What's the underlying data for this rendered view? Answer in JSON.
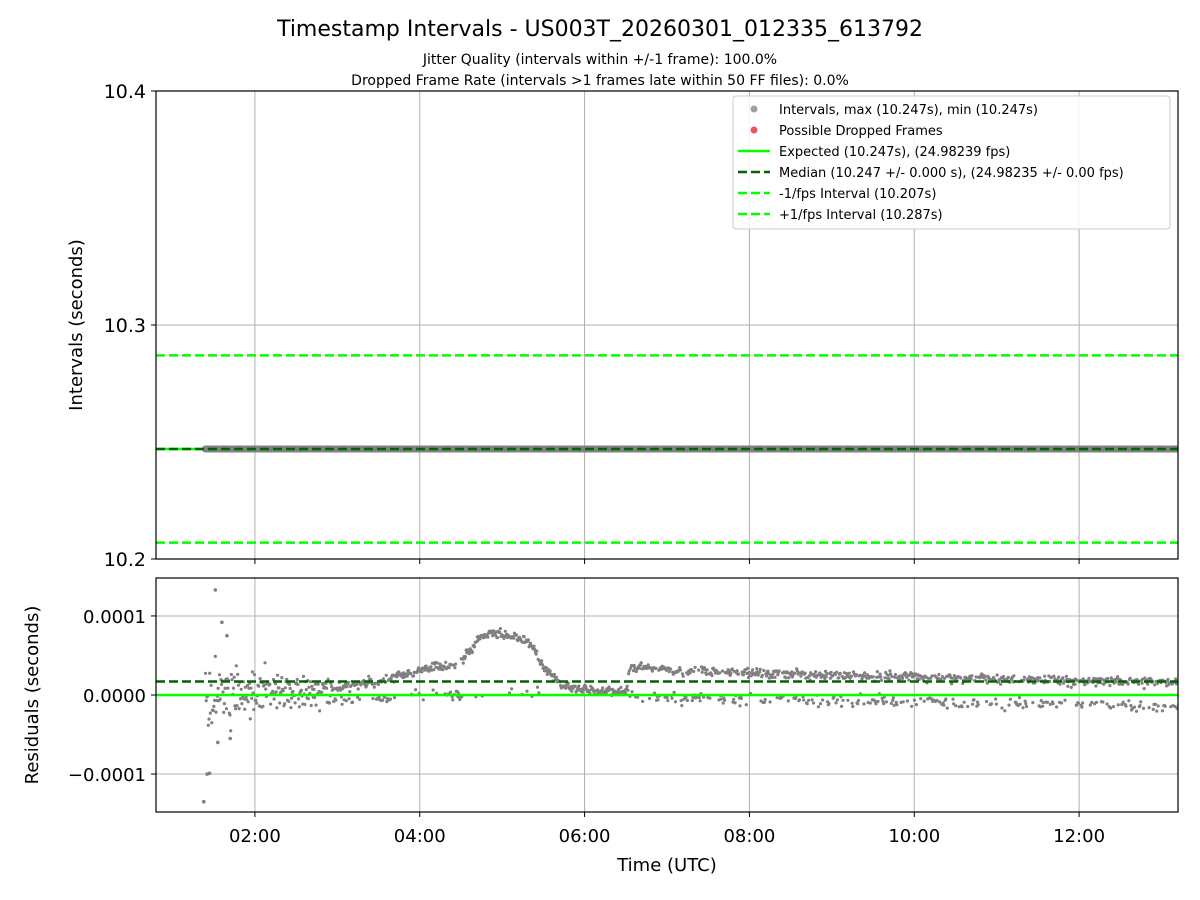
{
  "title": "Timestamp Intervals - US003T_20260301_012335_613792",
  "subtitle_lines": [
    "Jitter Quality (intervals within +/-1 frame): 100.0%",
    "Dropped Frame Rate (intervals >1 frames late within 50 FF files): 0.0%"
  ],
  "colors": {
    "points": "#808080",
    "dropped": "#ff5555",
    "expected": "#00ff00",
    "median": "#006400",
    "bounds": "#00ff00",
    "grid": "#b0b0b0"
  },
  "chart_data": [
    {
      "type": "scatter",
      "panel": "intervals",
      "ylabel": "Intervals (seconds)",
      "ylim": [
        10.2,
        10.4
      ],
      "yticks": [
        "10.2",
        "10.3",
        "10.4"
      ],
      "y_tick_values": [
        10.2,
        10.3,
        10.4
      ],
      "xlim": [
        "00:48",
        "13:12"
      ],
      "xticks": [
        "02:00",
        "04:00",
        "06:00",
        "08:00",
        "10:00",
        "12:00"
      ],
      "grid": true,
      "legend_position": "top-right",
      "legend": [
        {
          "label": "Intervals, max (10.247s), min (10.247s)",
          "kind": "dot",
          "color": "#a0a0a0"
        },
        {
          "label": "Possible Dropped Frames",
          "kind": "dot",
          "color": "#ee5555"
        },
        {
          "label": "Expected (10.247s), (24.98239 fps)",
          "kind": "solid",
          "color": "#00ff00"
        },
        {
          "label": "Median (10.247 +/- 0.000 s), (24.98235 +/- 0.00 fps)",
          "kind": "dashed",
          "color": "#006400"
        },
        {
          "label": "-1/fps Interval (10.207s)",
          "kind": "dashed",
          "color": "#00ff00"
        },
        {
          "label": "+1/fps Interval (10.287s)",
          "kind": "dashed",
          "color": "#00ff00"
        }
      ],
      "series": {
        "intervals": {
          "value": 10.247,
          "x_start": "01:24",
          "x_end": "13:12"
        },
        "expected": 10.247,
        "median": 10.247,
        "minus_fps_interval": 10.207,
        "plus_fps_interval": 10.287
      }
    },
    {
      "type": "scatter",
      "panel": "residuals",
      "xlabel": "Time (UTC)",
      "ylabel": "Residuals (seconds)",
      "ylim": [
        -0.000148,
        0.000148
      ],
      "yticks": [
        "−0.0001",
        "0.0000",
        "0.0001"
      ],
      "y_tick_values": [
        -0.0001,
        0.0,
        0.0001
      ],
      "xlim": [
        "00:48",
        "13:12"
      ],
      "xticks": [
        "02:00",
        "04:00",
        "06:00",
        "08:00",
        "10:00",
        "12:00"
      ],
      "x_tick_hours": [
        2,
        4,
        6,
        8,
        10,
        12
      ],
      "grid": true,
      "expected_residual": 0.0,
      "median_residual": 1.7e-05,
      "trend_hours": [
        1.4,
        1.6,
        1.9,
        2.3,
        2.8,
        3.3,
        3.6,
        3.9,
        4.2,
        4.45,
        4.6,
        4.75,
        4.95,
        5.15,
        5.35,
        5.5,
        5.7,
        5.9,
        6.2,
        6.5,
        6.55,
        7.0,
        7.5,
        8.0,
        8.5,
        9.0,
        9.5,
        10.0,
        10.5,
        11.0,
        11.5,
        12.0,
        12.5,
        13.2
      ],
      "trend_residual": [
        8e-06,
        8e-06,
        8e-06,
        8e-06,
        1e-05,
        1.2e-05,
        2e-05,
        2.8e-05,
        3.5e-05,
        3.8e-05,
        5.5e-05,
        7.5e-05,
        7.8e-05,
        7.4e-05,
        6.5e-05,
        3.5e-05,
        1.5e-05,
        8e-06,
        6e-06,
        4e-06,
        3.5e-05,
        3.2e-05,
        3e-05,
        2.8e-05,
        2.7e-05,
        2.5e-05,
        2.4e-05,
        2.3e-05,
        2.2e-05,
        2e-05,
        1.9e-05,
        1.8e-05,
        1.7e-05,
        1.6e-05
      ],
      "low_band_hours": [
        1.5,
        2.0,
        2.5,
        3.0,
        3.5,
        4.0,
        4.5,
        5.5,
        6.0,
        6.5,
        7.0,
        8.0,
        9.0,
        10.0,
        11.0,
        12.0,
        13.2
      ],
      "low_band_residual": [
        -2e-05,
        -1.5e-05,
        -1e-05,
        -8e-06,
        -5e-06,
        0.0,
        0.0,
        5e-06,
        5e-06,
        0.0,
        -2e-06,
        -5e-06,
        -7e-06,
        -9e-06,
        -1e-05,
        -1.2e-05,
        -1.5e-05
      ],
      "early_scatter_span": [
        1.4,
        3.7
      ],
      "early_scatter_amplitude": 3.5e-05,
      "outliers": [
        {
          "t": 1.38,
          "r": -0.000135
        },
        {
          "t": 1.42,
          "r": -0.0001
        },
        {
          "t": 1.45,
          "r": -9.9e-05
        },
        {
          "t": 1.52,
          "r": 0.000133
        },
        {
          "t": 1.6,
          "r": 9.2e-05
        },
        {
          "t": 1.55,
          "r": -6e-05
        },
        {
          "t": 1.66,
          "r": 7.5e-05
        },
        {
          "t": 1.7,
          "r": -5.5e-05
        }
      ]
    }
  ]
}
